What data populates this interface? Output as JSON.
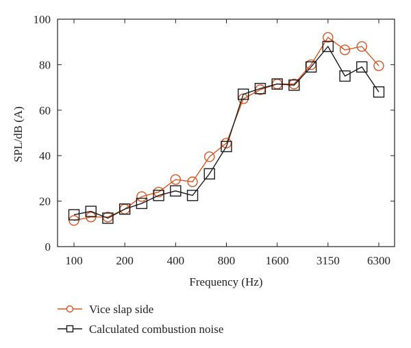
{
  "chart_data": {
    "type": "line",
    "xlabel": "Frequency (Hz)",
    "ylabel": "SPL/dB (A)",
    "ylim": [
      0,
      100
    ],
    "yticks": [
      0,
      20,
      40,
      60,
      80,
      100
    ],
    "x_categories": [
      "100",
      "125",
      "160",
      "200",
      "250",
      "315",
      "400",
      "500",
      "630",
      "800",
      "1000",
      "1250",
      "1600",
      "2000",
      "2500",
      "3150",
      "4000",
      "5000",
      "6300"
    ],
    "x_tick_labels": [
      "100",
      "200",
      "400",
      "800",
      "1600",
      "3150",
      "6300"
    ],
    "legend_position": "bottom-left",
    "grid": false,
    "series": [
      {
        "name": "Vice slap side",
        "color": "#d9541e",
        "marker": "circle",
        "values": [
          11.5,
          13,
          13,
          16.5,
          22,
          24,
          29.5,
          28.5,
          39.5,
          45.5,
          65,
          69,
          71.5,
          71.5,
          80,
          92,
          86.5,
          88,
          79.5
        ]
      },
      {
        "name": "Calculated combustion noise",
        "color": "#1a1a1a",
        "marker": "square",
        "values": [
          14,
          15.5,
          12.5,
          16.5,
          19,
          22.5,
          24.5,
          22.5,
          32,
          44,
          67,
          69.5,
          71.5,
          71,
          79,
          88,
          75,
          79,
          68
        ]
      }
    ]
  }
}
